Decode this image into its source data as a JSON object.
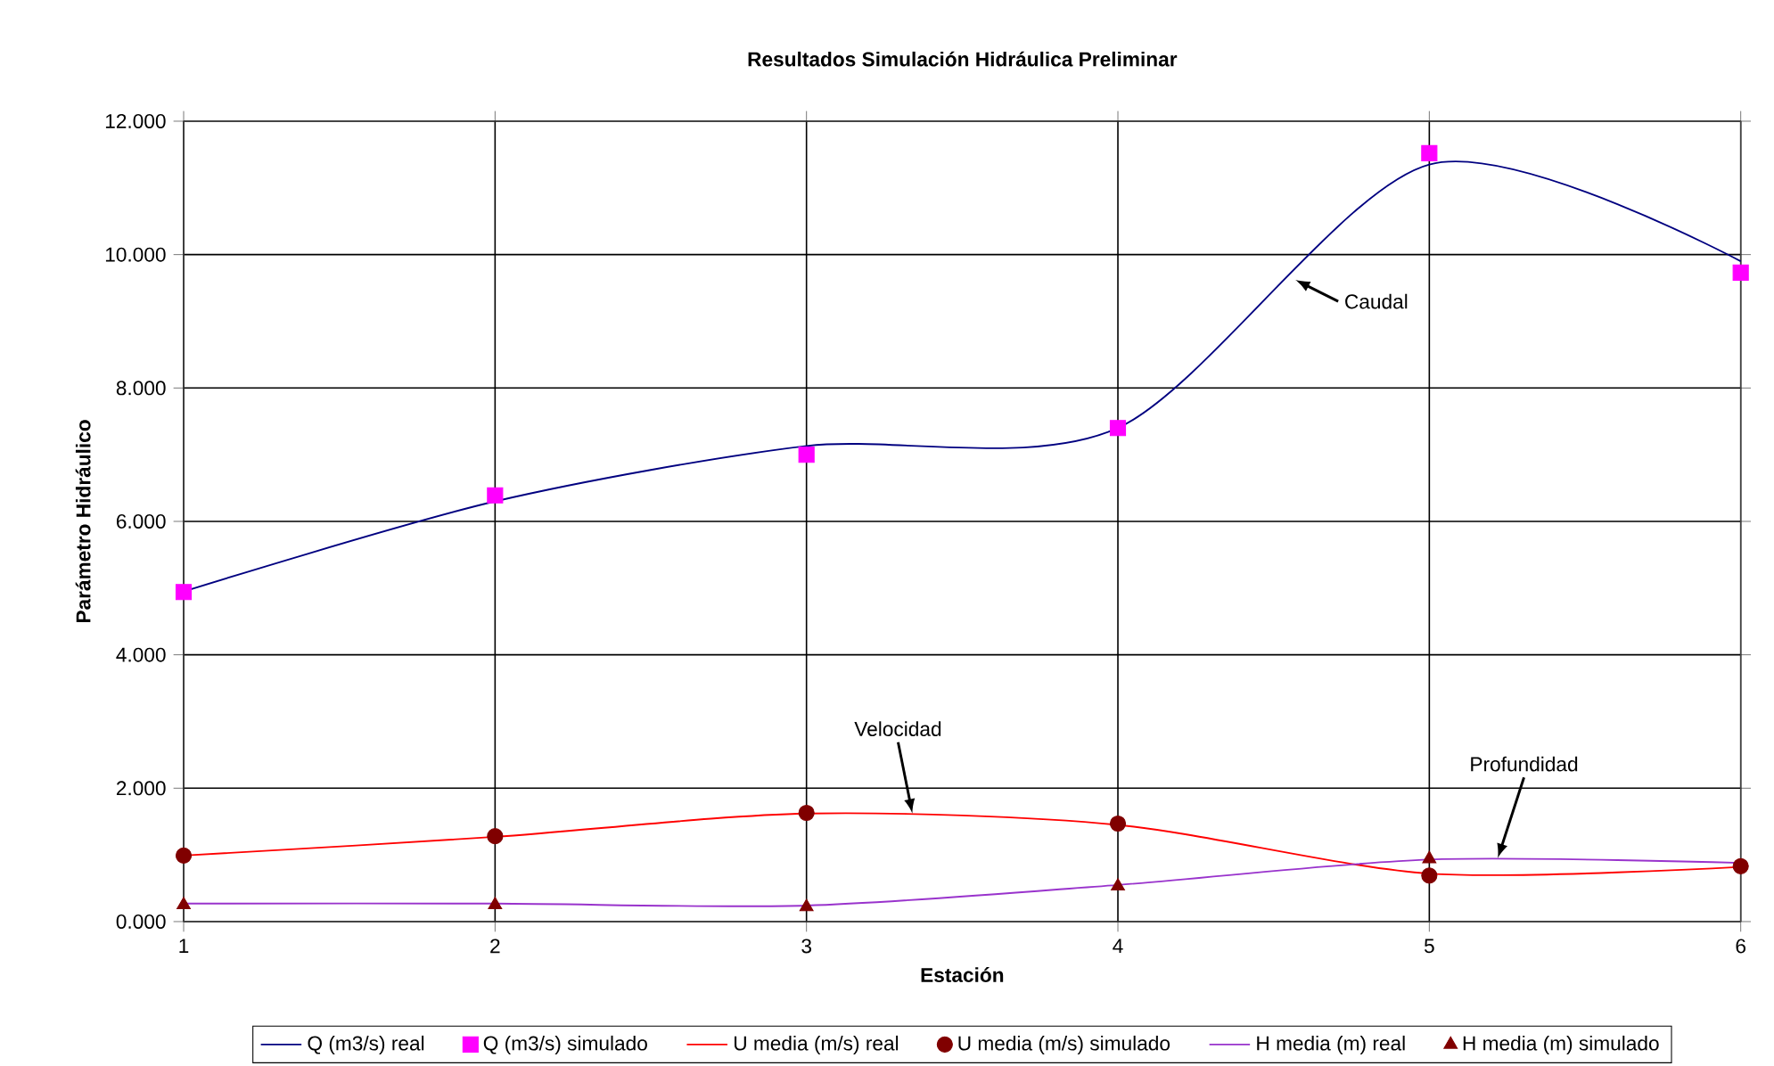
{
  "chart_data": {
    "type": "line",
    "title": "Resultados Simulación Hidráulica Preliminar",
    "xlabel": "Estación",
    "ylabel": "Parámetro Hidráulico",
    "x": [
      1,
      2,
      3,
      4,
      5,
      6
    ],
    "xlim": [
      1,
      6
    ],
    "xticks": [
      1,
      2,
      3,
      4,
      5,
      6
    ],
    "ylim": [
      0,
      12
    ],
    "yticks": [
      {
        "value": 0,
        "label": "0.000"
      },
      {
        "value": 2,
        "label": "2.000"
      },
      {
        "value": 4,
        "label": "4.000"
      },
      {
        "value": 6,
        "label": "6.000"
      },
      {
        "value": 8,
        "label": "8.000"
      },
      {
        "value": 10,
        "label": "10.000"
      },
      {
        "value": 12,
        "label": "12.000"
      }
    ],
    "grid": true,
    "legend": "bottom",
    "series": [
      {
        "name": "Q (m3/s) real",
        "type": "line",
        "color": "#000080",
        "marker": "none",
        "values": [
          4.95,
          6.3,
          7.13,
          7.4,
          11.35,
          9.9
        ]
      },
      {
        "name": "Q (m3/s) simulado",
        "type": "scatter",
        "color": "#ff00ff",
        "marker": "square",
        "values": [
          4.94,
          6.39,
          7.0,
          7.4,
          11.52,
          9.73
        ]
      },
      {
        "name": "U media (m/s) real",
        "type": "line",
        "color": "#ff0000",
        "marker": "none",
        "values": [
          0.99,
          1.27,
          1.62,
          1.45,
          0.72,
          0.82
        ]
      },
      {
        "name": "U media (m/s) simulado",
        "type": "scatter",
        "color": "#800000",
        "marker": "circle",
        "values": [
          0.99,
          1.28,
          1.63,
          1.47,
          0.69,
          0.83
        ]
      },
      {
        "name": "H media (m) real",
        "type": "line",
        "color": "#9933cc",
        "marker": "none",
        "values": [
          0.27,
          0.27,
          0.24,
          0.55,
          0.93,
          0.88
        ]
      },
      {
        "name": "H media (m) simulado",
        "type": "scatter",
        "color": "#800000",
        "marker": "triangle",
        "values": [
          0.25,
          0.25,
          0.22,
          0.53,
          0.94,
          null
        ]
      }
    ],
    "annotations": [
      {
        "text": "Caudal",
        "x": 4.57,
        "y": 9.62
      },
      {
        "text": "Velocidad",
        "x": 3.34,
        "y": 1.62
      },
      {
        "text": "Profundidad",
        "x": 5.22,
        "y": 0.95
      }
    ]
  }
}
